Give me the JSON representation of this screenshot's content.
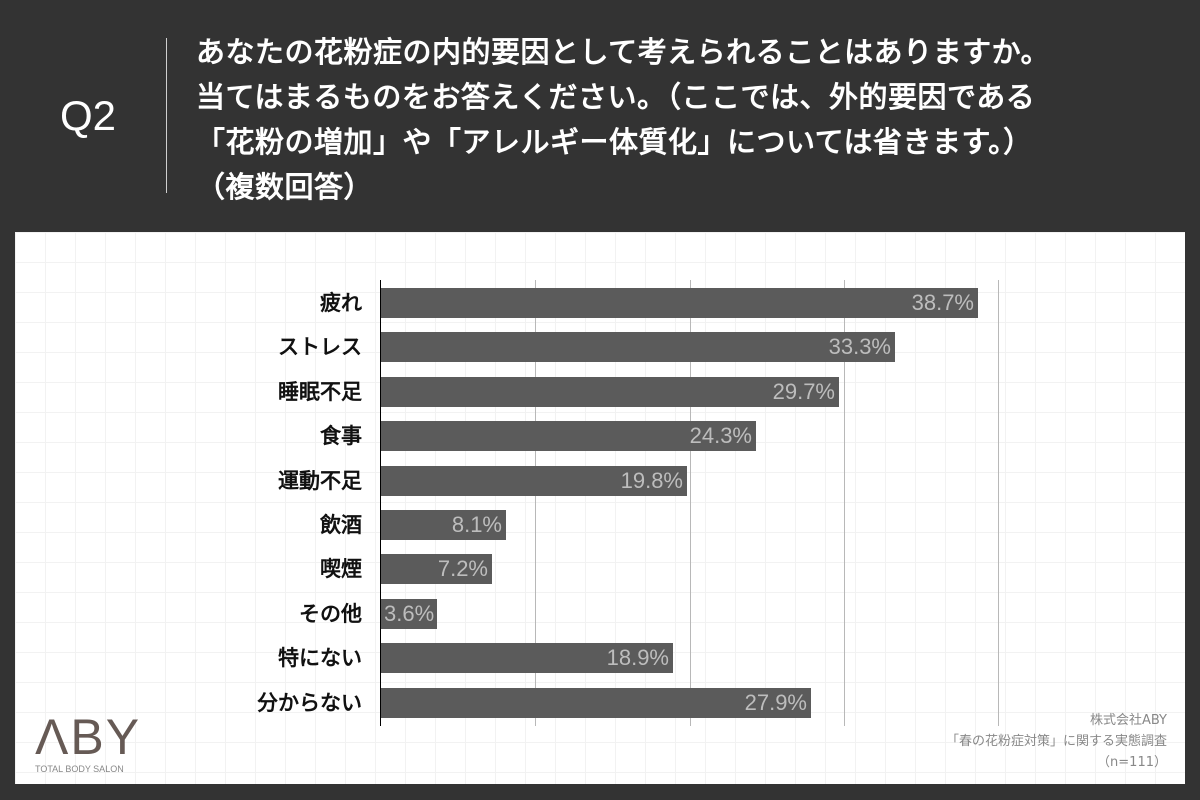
{
  "header": {
    "question_number": "Q2",
    "question_lines": [
      "あなたの花粉症の内的要因として考えられることはありますか。",
      "当てはまるものをお答えください。（ここでは、外的要因である",
      "「花粉の増加」や「アレルギー体質化」については省きます。）",
      "（複数回答）"
    ]
  },
  "chart_data": {
    "type": "bar",
    "orientation": "horizontal",
    "title": "あなたの花粉症の内的要因として考えられることはありますか。（複数回答）",
    "categories": [
      "疲れ",
      "ストレス",
      "睡眠不足",
      "食事",
      "運動不足",
      "飲酒",
      "喫煙",
      "その他",
      "特にない",
      "分からない"
    ],
    "values": [
      38.7,
      33.3,
      29.7,
      24.3,
      19.8,
      8.1,
      7.2,
      3.6,
      18.9,
      27.9
    ],
    "value_labels": [
      "38.7%",
      "33.3%",
      "29.7%",
      "24.3%",
      "19.8%",
      "8.1%",
      "7.2%",
      "3.6%",
      "18.9%",
      "27.9%"
    ],
    "xlabel": "",
    "ylabel": "",
    "xlim": [
      0,
      40
    ],
    "gridlines_at": [
      10,
      20,
      30,
      40
    ],
    "unit": "%",
    "bar_color": "#5b5b5b",
    "label_color": "#bdbdbd"
  },
  "logo": {
    "mark": "ΛBY",
    "subtitle": "TOTAL BODY SALON"
  },
  "source": {
    "company": "株式会社ABY",
    "survey": "「春の花粉症対策」に関する実態調査",
    "sample": "（n=111）"
  }
}
